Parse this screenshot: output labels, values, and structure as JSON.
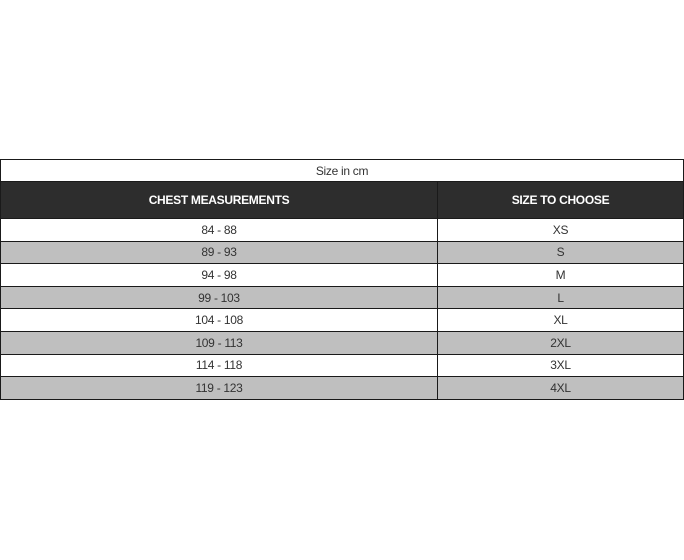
{
  "caption": "Size in cm",
  "headers": [
    "CHEST MEASUREMENTS",
    "SIZE TO CHOOSE"
  ],
  "rows": [
    {
      "chest": "84 - 88",
      "size": "XS"
    },
    {
      "chest": "89 - 93",
      "size": "S"
    },
    {
      "chest": "94 - 98",
      "size": "M"
    },
    {
      "chest": "99 - 103",
      "size": "L"
    },
    {
      "chest": "104 - 108",
      "size": "XL"
    },
    {
      "chest": "109 - 113",
      "size": "2XL"
    },
    {
      "chest": "114 - 118",
      "size": "3XL"
    },
    {
      "chest": "119 - 123",
      "size": "4XL"
    }
  ],
  "colors": {
    "header_bg": "#2d2d2d",
    "alt_row_bg": "#bfbfbf"
  }
}
